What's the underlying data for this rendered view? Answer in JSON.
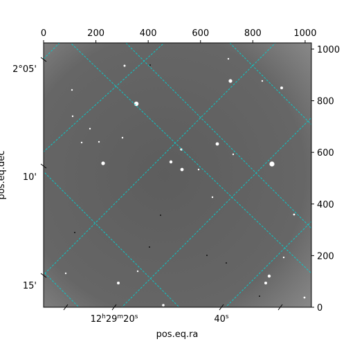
{
  "chart_data": {
    "type": "image",
    "xlabel": "pos.eq.ra",
    "ylabel": "pos.eq.dec",
    "pixel_axes": {
      "xlim": [
        0,
        1024
      ],
      "ylim": [
        0,
        1024
      ],
      "top_ticks": [
        0,
        200,
        400,
        600,
        800,
        1000
      ],
      "right_ticks": [
        0,
        200,
        400,
        600,
        800,
        1000
      ]
    },
    "world_axes": {
      "ra_ticks": [
        {
          "label_main": "12",
          "label_sup1": "h",
          "label_mid": "29",
          "label_sup2": "m",
          "label_end": "20",
          "label_sup3": "s"
        },
        {
          "label_main": "40",
          "label_sup1": "s"
        }
      ],
      "dec_ticks": [
        "2°05'",
        "10'",
        "15'"
      ]
    },
    "grid": true,
    "grid_color": "#00d4d4",
    "colormap": "gray",
    "background_color": "#6e6e6e"
  }
}
